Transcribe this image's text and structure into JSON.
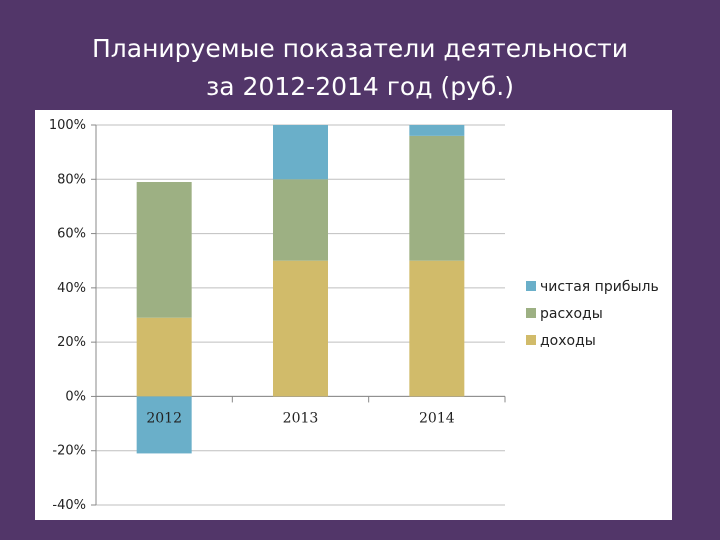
{
  "title_lines": [
    "Планируемые показатели деятельности",
    "за 2012-2014 год (руб.)"
  ],
  "chart_data": {
    "type": "bar",
    "stacked": true,
    "categories": [
      "2012",
      "2013",
      "2014"
    ],
    "series": [
      {
        "name": "доходы",
        "color": "#D1BB6A",
        "values": [
          29,
          50,
          50
        ]
      },
      {
        "name": "расходы",
        "color": "#9DB083",
        "values": [
          50,
          30,
          46
        ]
      },
      {
        "name": "чистая прибыль",
        "color": "#6AAFC9",
        "values": [
          -21,
          20,
          4
        ]
      }
    ],
    "ylim": [
      -40,
      100
    ],
    "yticks": [
      -40,
      -20,
      0,
      20,
      40,
      60,
      80,
      100
    ],
    "ytick_labels": [
      "-40%",
      "-20%",
      "0%",
      "20%",
      "40%",
      "60%",
      "80%",
      "100%"
    ],
    "legend_order": [
      "чистая прибыль",
      "расходы",
      "доходы"
    ],
    "legend_position": "right",
    "grid": true
  }
}
